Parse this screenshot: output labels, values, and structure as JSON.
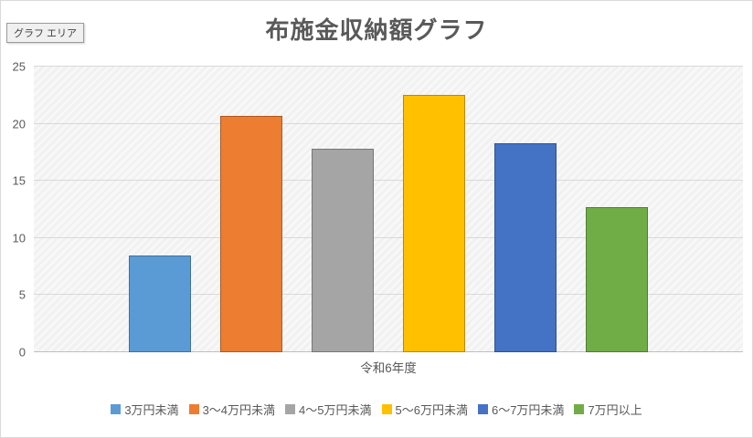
{
  "tooltip": {
    "label": "グラフ エリア"
  },
  "chart_data": {
    "type": "bar",
    "title": "布施金収納額グラフ",
    "categories": [
      "令和6年度"
    ],
    "series": [
      {
        "name": "3万円未満",
        "color": "#5B9BD5",
        "values": [
          8.5
        ]
      },
      {
        "name": "3〜4万円未満",
        "color": "#ED7D31",
        "values": [
          20.7
        ]
      },
      {
        "name": "4〜5万円未満",
        "color": "#A5A5A5",
        "values": [
          17.8
        ]
      },
      {
        "name": "5〜6万円未満",
        "color": "#FFC000",
        "values": [
          22.5
        ]
      },
      {
        "name": "6〜7万円未満",
        "color": "#4472C4",
        "values": [
          18.3
        ]
      },
      {
        "name": "7万円以上",
        "color": "#70AD47",
        "values": [
          12.7
        ]
      }
    ],
    "xlabel": "",
    "ylabel": "",
    "ylim": [
      0,
      25
    ],
    "yticks": [
      0,
      5,
      10,
      15,
      20,
      25
    ],
    "grid": true,
    "legend_position": "bottom",
    "plot_background": "#F2F2F2",
    "gridline_color": "#D9D9D9",
    "text_color": "#595959"
  }
}
